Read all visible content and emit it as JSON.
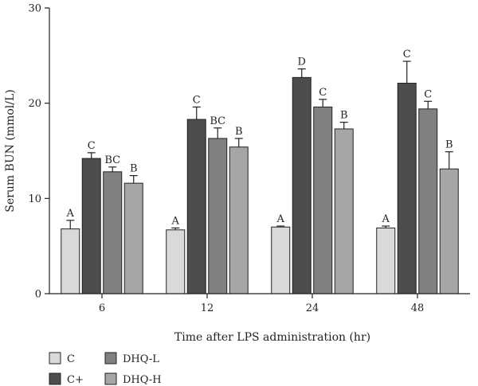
{
  "chart_data": {
    "type": "bar",
    "title": "",
    "xlabel": "Time after LPS administration (hr)",
    "ylabel": "Serum BUN (mmol/L)",
    "ylim": [
      0,
      30
    ],
    "yticks": [
      0,
      10,
      20,
      30
    ],
    "categories": [
      "6",
      "12",
      "24",
      "48"
    ],
    "legend_position": "bottom-left",
    "grid": false,
    "series": [
      {
        "name": "C",
        "color": "#d9d9d9",
        "values": [
          6.8,
          6.7,
          7.0,
          6.9
        ],
        "errors": [
          0.9,
          0.2,
          0.1,
          0.2
        ],
        "labels": [
          "A",
          "A",
          "A",
          "A"
        ]
      },
      {
        "name": "C+",
        "color": "#4d4d4d",
        "values": [
          14.2,
          18.3,
          22.7,
          22.1
        ],
        "errors": [
          0.6,
          1.3,
          0.9,
          2.3
        ],
        "labels": [
          "C",
          "C",
          "D",
          "C"
        ]
      },
      {
        "name": "DHQ-L",
        "color": "#808080",
        "values": [
          12.8,
          16.3,
          19.6,
          19.4
        ],
        "errors": [
          0.5,
          1.1,
          0.8,
          0.8
        ],
        "labels": [
          "BC",
          "BC",
          "C",
          "C"
        ]
      },
      {
        "name": "DHQ-H",
        "color": "#a6a6a6",
        "values": [
          11.6,
          15.4,
          17.3,
          13.1
        ],
        "errors": [
          0.8,
          0.9,
          0.7,
          1.8
        ],
        "labels": [
          "B",
          "B",
          "B",
          "B"
        ]
      }
    ]
  }
}
